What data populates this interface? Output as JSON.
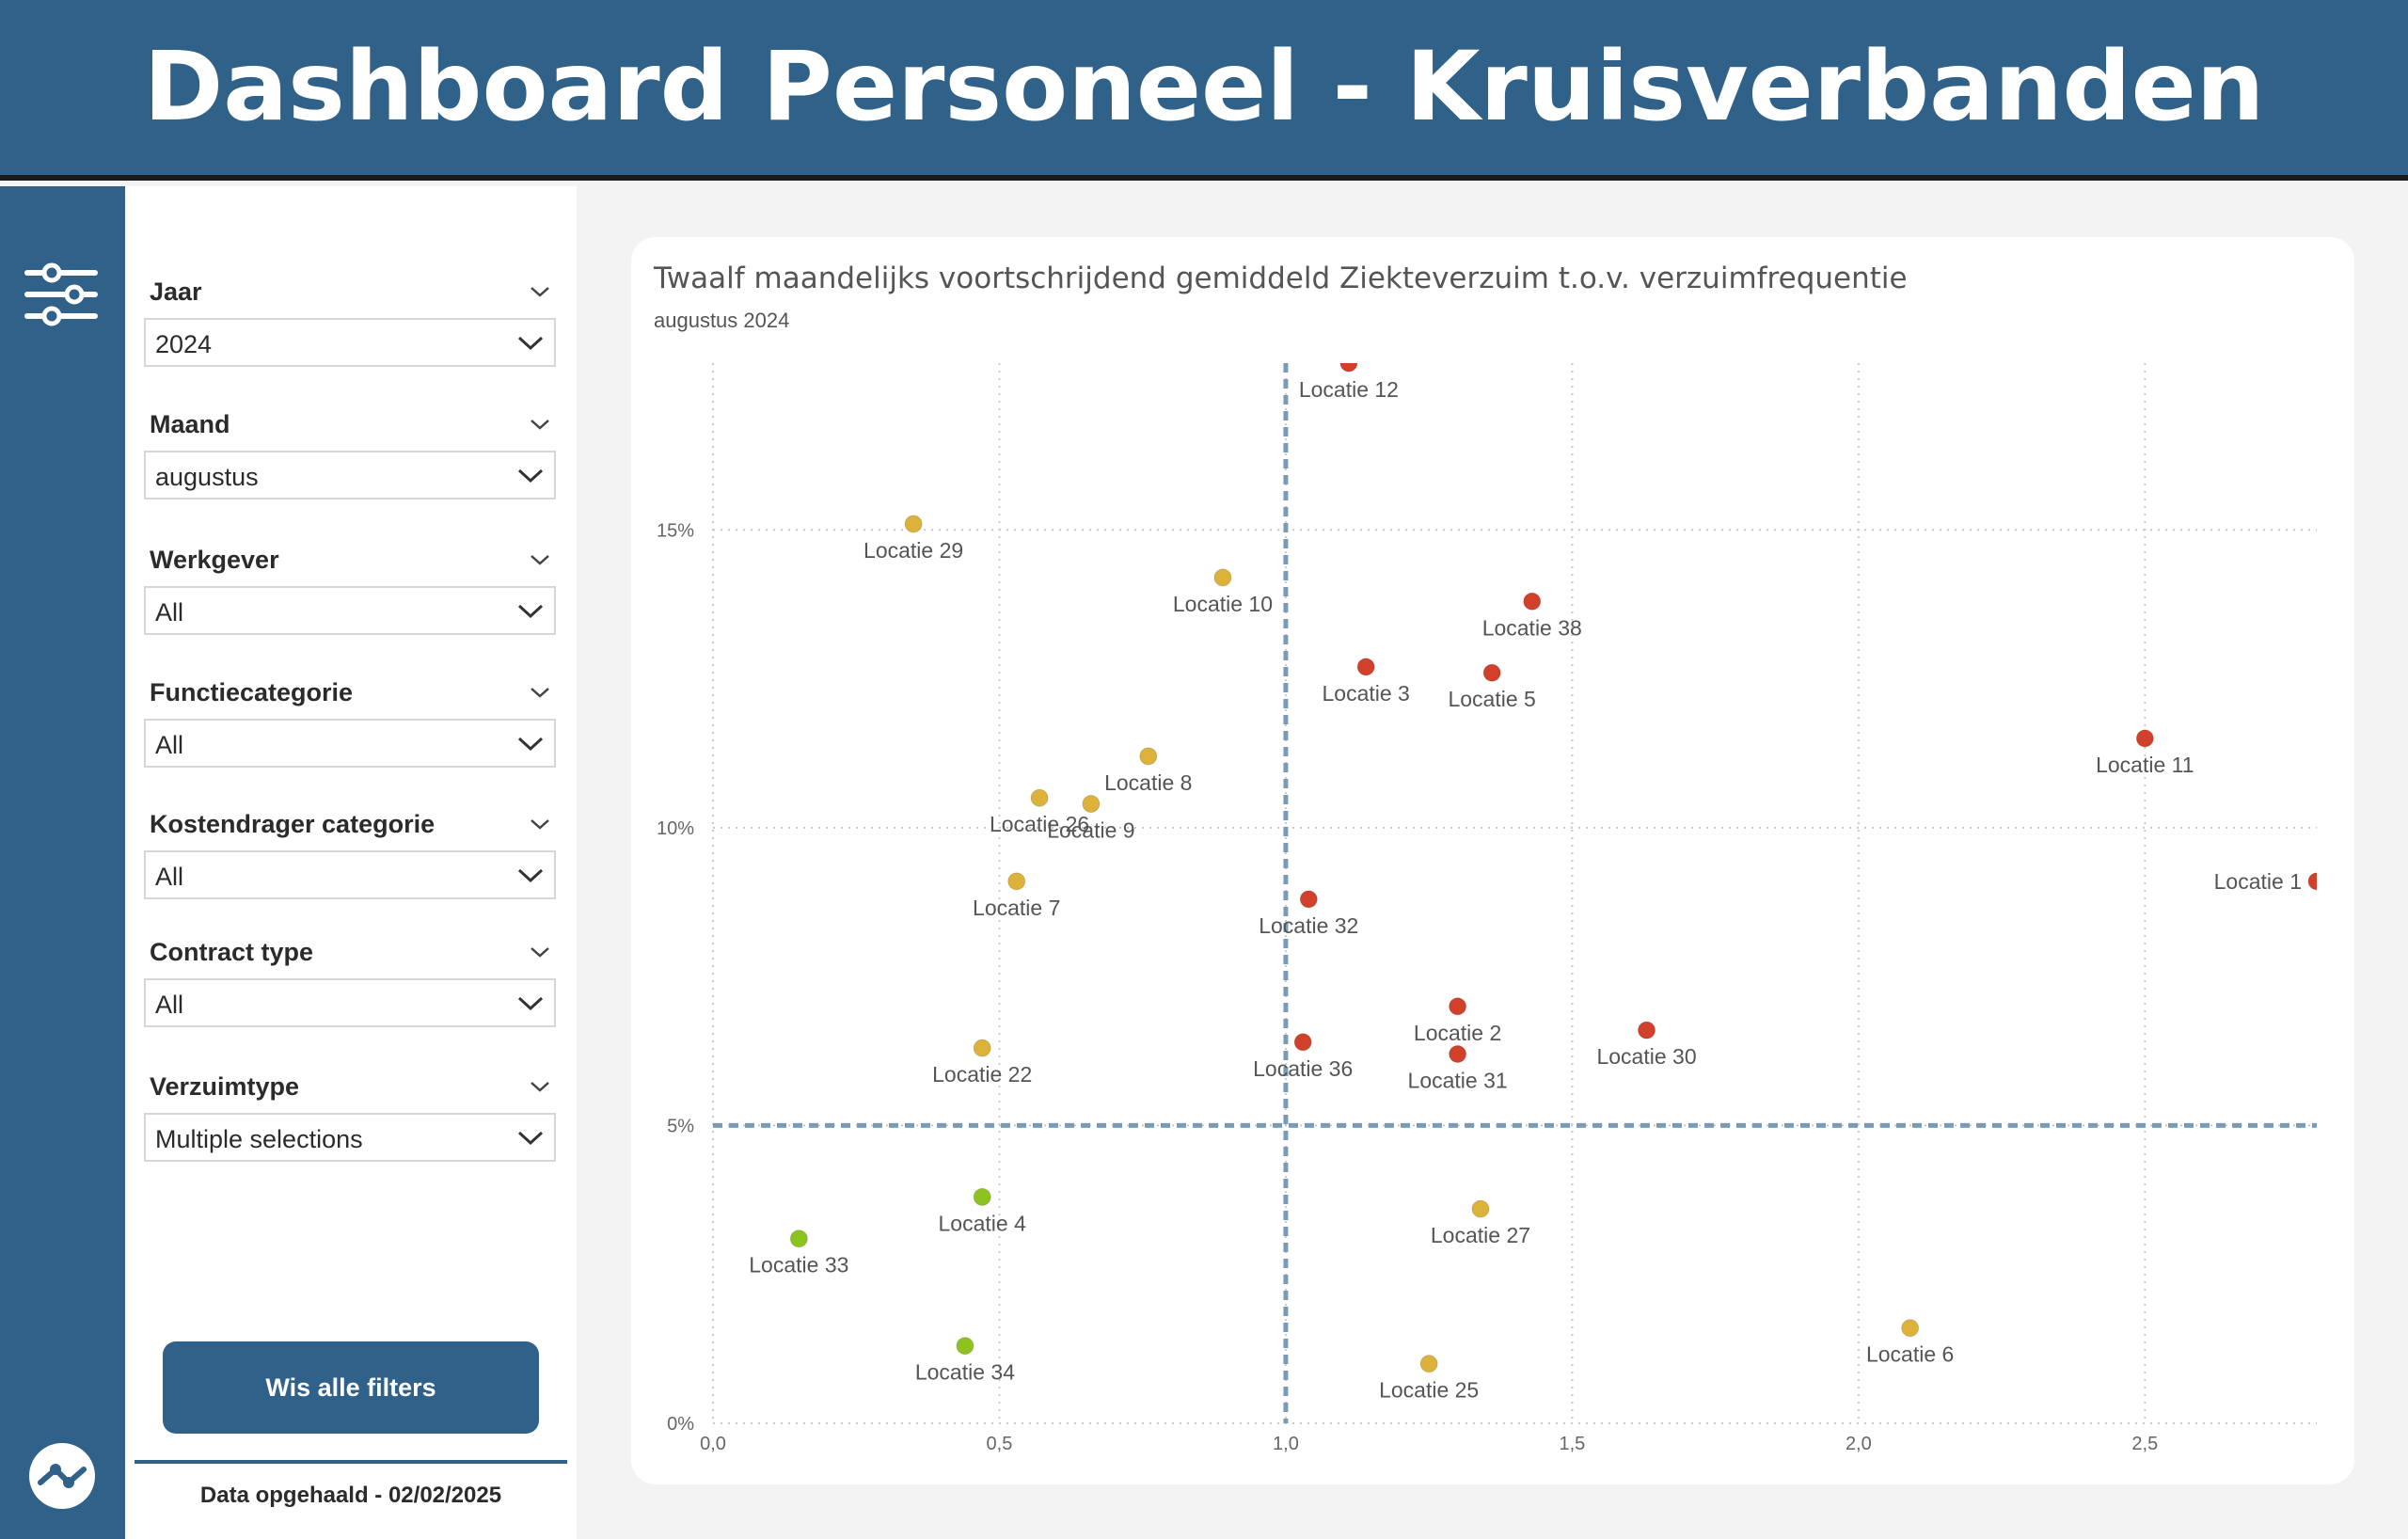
{
  "header": {
    "title": "Dashboard Personeel - Kruisverbanden"
  },
  "filters": [
    {
      "title": "Jaar",
      "value": "2024"
    },
    {
      "title": "Maand",
      "value": "augustus"
    },
    {
      "title": "Werkgever",
      "value": "All"
    },
    {
      "title": "Functiecategorie",
      "value": "All"
    },
    {
      "title": "Kostendrager categorie",
      "value": "All"
    },
    {
      "title": "Contract type",
      "value": "All"
    },
    {
      "title": "Verzuimtype",
      "value": "Multiple selections"
    }
  ],
  "clear_button": {
    "label": "Wis alle filters"
  },
  "data_date": "Data opgehaald - 02/02/2025",
  "icons": {
    "rail_top": "sliders-icon",
    "rail_bottom": "logo-icon"
  },
  "colors": {
    "brand": "#2f6189",
    "red": "#d0402a",
    "yellow": "#dcb23a",
    "green": "#8cc31f",
    "reference_line": "#7a9bb7"
  },
  "chart_data": {
    "type": "scatter",
    "title": "Twaalf maandelijks voortschrijdend gemiddeld Ziekteverzuim t.o.v. verzuimfrequentie",
    "subtitle": "augustus 2024",
    "xlabel": "",
    "ylabel": "",
    "xlim": [
      0,
      2.8
    ],
    "ylim": [
      0,
      17.8
    ],
    "x_ticks": [
      "0,0",
      "0,5",
      "1,0",
      "1,5",
      "2,0",
      "2,5"
    ],
    "x_tick_values": [
      0,
      0.5,
      1.0,
      1.5,
      2.0,
      2.5
    ],
    "y_ticks": [
      "0%",
      "5%",
      "10%",
      "15%"
    ],
    "y_tick_values": [
      0,
      5,
      10,
      15
    ],
    "grid": true,
    "reference_lines": {
      "x": 1.0,
      "y": 5
    },
    "points": [
      {
        "label": "Locatie 12",
        "x": 1.11,
        "y": 17.8,
        "status": "red"
      },
      {
        "label": "Locatie 29",
        "x": 0.35,
        "y": 15.1,
        "status": "yellow"
      },
      {
        "label": "Locatie 10",
        "x": 0.89,
        "y": 14.2,
        "status": "yellow"
      },
      {
        "label": "Locatie 38",
        "x": 1.43,
        "y": 13.8,
        "status": "red"
      },
      {
        "label": "Locatie 3",
        "x": 1.14,
        "y": 12.7,
        "status": "red"
      },
      {
        "label": "Locatie 5",
        "x": 1.36,
        "y": 12.6,
        "status": "red"
      },
      {
        "label": "Locatie 11",
        "x": 2.5,
        "y": 11.5,
        "status": "red"
      },
      {
        "label": "Locatie 8",
        "x": 0.76,
        "y": 11.2,
        "status": "yellow"
      },
      {
        "label": "Locatie 26",
        "x": 0.57,
        "y": 10.5,
        "status": "yellow"
      },
      {
        "label": "Locatie 9",
        "x": 0.66,
        "y": 10.4,
        "status": "yellow"
      },
      {
        "label": "Locatie 7",
        "x": 0.53,
        "y": 9.1,
        "status": "yellow"
      },
      {
        "label": "Locatie 1",
        "x": 2.8,
        "y": 9.1,
        "status": "red"
      },
      {
        "label": "Locatie 32",
        "x": 1.04,
        "y": 8.8,
        "status": "red"
      },
      {
        "label": "Locatie 2",
        "x": 1.3,
        "y": 7.0,
        "status": "red"
      },
      {
        "label": "Locatie 30",
        "x": 1.63,
        "y": 6.6,
        "status": "red"
      },
      {
        "label": "Locatie 36",
        "x": 1.03,
        "y": 6.4,
        "status": "red"
      },
      {
        "label": "Locatie 22",
        "x": 0.47,
        "y": 6.3,
        "status": "yellow"
      },
      {
        "label": "Locatie 31",
        "x": 1.3,
        "y": 6.2,
        "status": "red"
      },
      {
        "label": "Locatie 27",
        "x": 1.34,
        "y": 3.6,
        "status": "yellow"
      },
      {
        "label": "Locatie 4",
        "x": 0.47,
        "y": 3.8,
        "status": "green"
      },
      {
        "label": "Locatie 33",
        "x": 0.15,
        "y": 3.1,
        "status": "green"
      },
      {
        "label": "Locatie 6",
        "x": 2.09,
        "y": 1.6,
        "status": "yellow"
      },
      {
        "label": "Locatie 34",
        "x": 0.44,
        "y": 1.3,
        "status": "green"
      },
      {
        "label": "Locatie 25",
        "x": 1.25,
        "y": 1.0,
        "status": "yellow"
      }
    ]
  }
}
